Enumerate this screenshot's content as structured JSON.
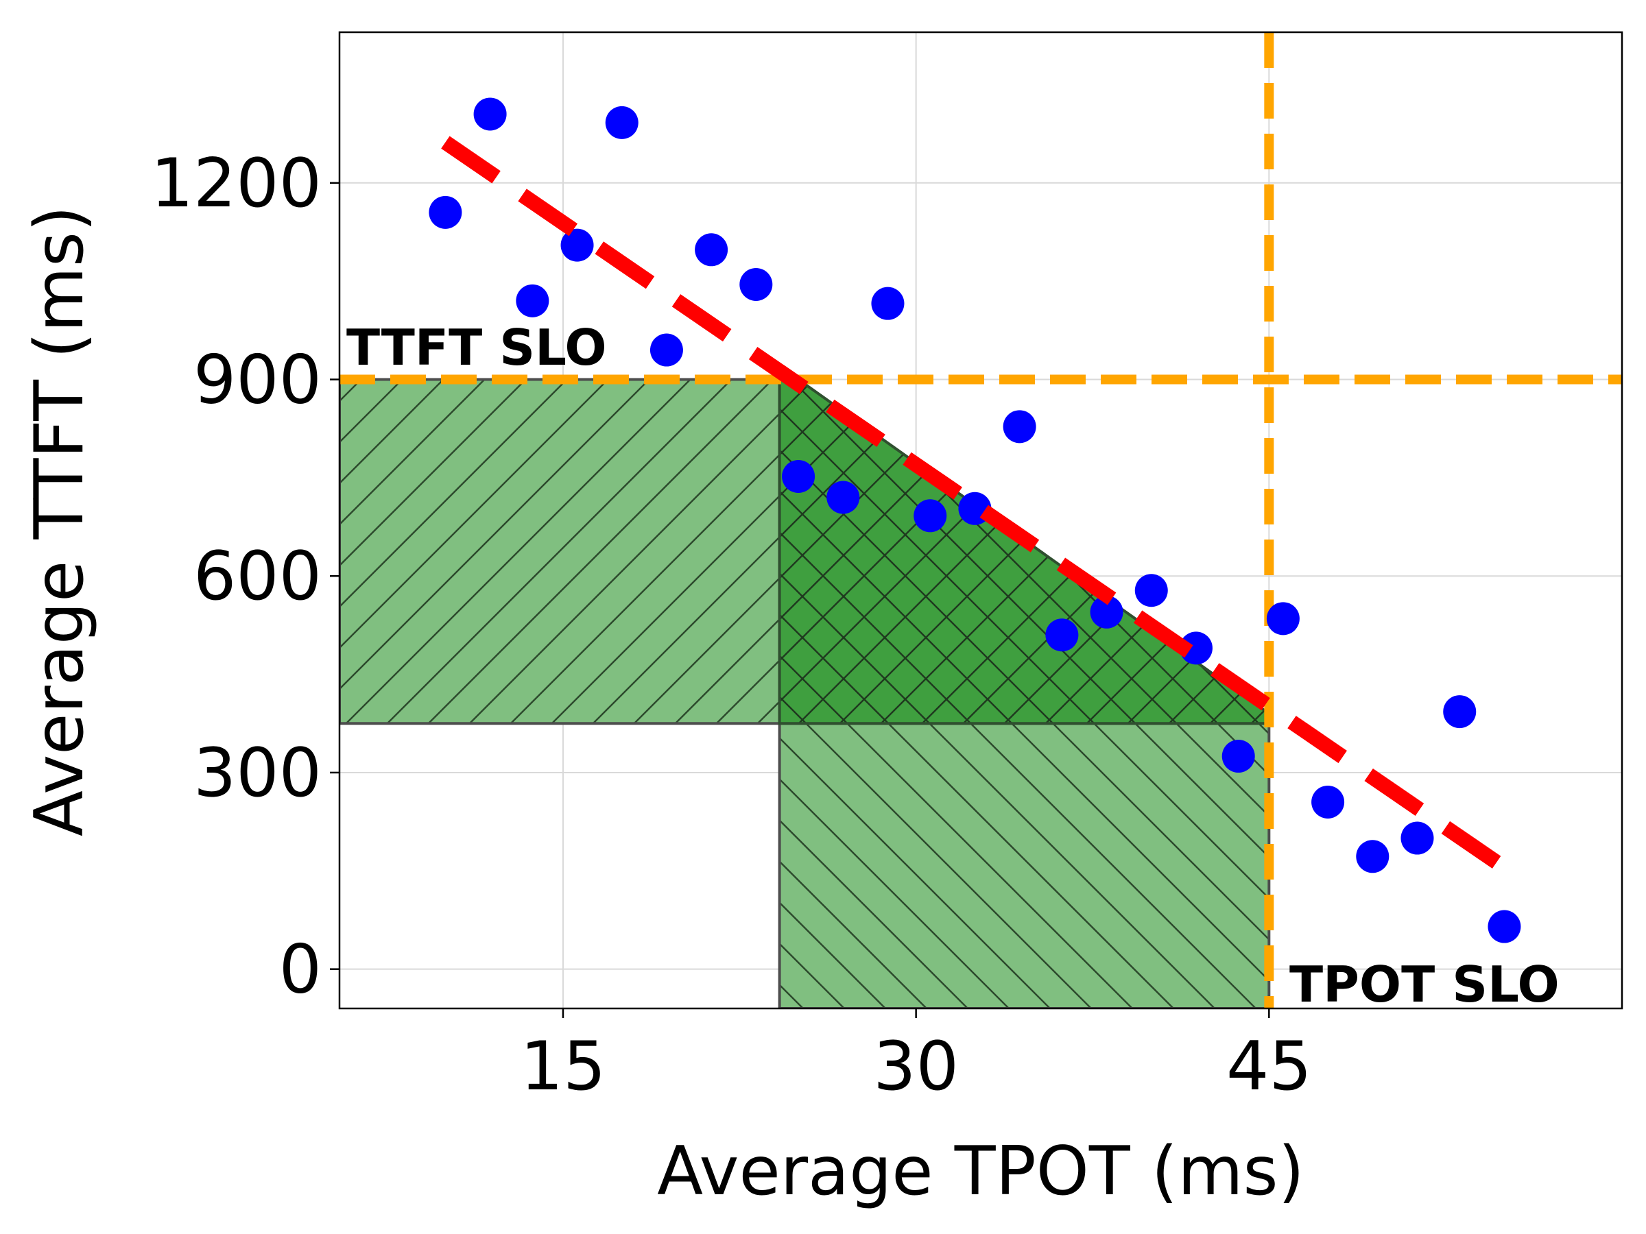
{
  "chart_data": {
    "type": "scatter",
    "xlabel": "Average TPOT (ms)",
    "ylabel": "Average TTFT (ms)",
    "xlim": [
      5.5,
      60
    ],
    "ylim": [
      -60,
      1430
    ],
    "xticks": [
      15,
      30,
      45
    ],
    "yticks": [
      0,
      300,
      600,
      900,
      1200
    ],
    "grid": true,
    "points": [
      {
        "x": 10.0,
        "y": 1155
      },
      {
        "x": 11.9,
        "y": 1305
      },
      {
        "x": 13.7,
        "y": 1020
      },
      {
        "x": 15.6,
        "y": 1105
      },
      {
        "x": 17.5,
        "y": 1292
      },
      {
        "x": 19.4,
        "y": 945
      },
      {
        "x": 21.3,
        "y": 1098
      },
      {
        "x": 23.2,
        "y": 1045
      },
      {
        "x": 25.0,
        "y": 752
      },
      {
        "x": 26.9,
        "y": 720
      },
      {
        "x": 28.8,
        "y": 1016
      },
      {
        "x": 30.6,
        "y": 692
      },
      {
        "x": 32.5,
        "y": 703
      },
      {
        "x": 34.4,
        "y": 828
      },
      {
        "x": 36.2,
        "y": 510
      },
      {
        "x": 38.1,
        "y": 545
      },
      {
        "x": 40.0,
        "y": 578
      },
      {
        "x": 41.9,
        "y": 490
      },
      {
        "x": 43.7,
        "y": 325
      },
      {
        "x": 45.6,
        "y": 535
      },
      {
        "x": 47.5,
        "y": 255
      },
      {
        "x": 49.4,
        "y": 172
      },
      {
        "x": 51.3,
        "y": 200
      },
      {
        "x": 53.1,
        "y": 393
      },
      {
        "x": 55.0,
        "y": 65
      }
    ],
    "point_color": "#0000ff",
    "trend_line": {
      "x": [
        10,
        55
      ],
      "y": [
        1262,
        155
      ],
      "color": "#ff0000",
      "style": "dashed"
    },
    "slo_lines": {
      "ttft": {
        "value": 900,
        "label": "TTFT SLO"
      },
      "tpot": {
        "value": 45,
        "label": "TPOT SLO"
      },
      "color": "#ffa500",
      "style": "dashed"
    },
    "regions": {
      "ttft_band": {
        "x": [
          5.5,
          24.2
        ],
        "y": [
          375,
          900
        ],
        "hatch": "\\\\",
        "color": "#80bf80"
      },
      "tpot_band": {
        "x": [
          24.2,
          45
        ],
        "y": [
          -60,
          375
        ],
        "hatch": "//",
        "color": "#80bf80"
      },
      "overlap": {
        "polygon": [
          [
            24.2,
            375
          ],
          [
            24.2,
            900
          ],
          [
            25.0,
            900
          ],
          [
            45,
            390
          ],
          [
            45,
            375
          ]
        ],
        "hatch": "xx",
        "color": "#3f9f3f"
      }
    }
  }
}
